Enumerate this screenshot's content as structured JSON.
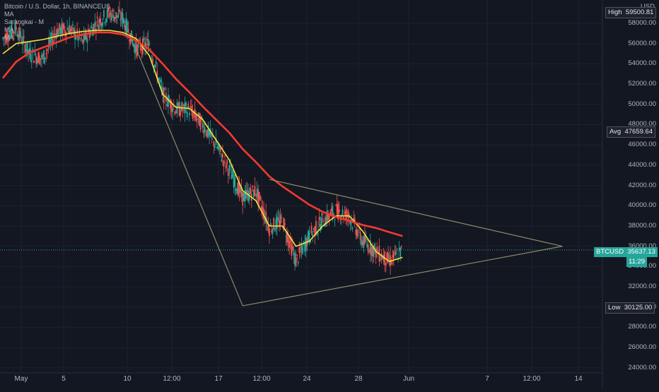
{
  "legend": {
    "symbol_line": "Bitcoin / U.S. Dollar, 1h, BINANCEUS",
    "ind1": "MA",
    "ind2": "Sarangkai - M",
    "ind3": "MA",
    "ind4": "MA"
  },
  "axis": {
    "currency": "USD",
    "ticks": [
      "58000.00",
      "56000.00",
      "54000.00",
      "52000.00",
      "50000.00",
      "48000.00",
      "46000.00",
      "44000.00",
      "42000.00",
      "40000.00",
      "38000.00",
      "36000.00",
      "34000.00",
      "32000.00",
      "30000.00",
      "28000.00",
      "26000.00",
      "24000.00"
    ]
  },
  "xaxis": {
    "labels": [
      "May",
      "5",
      "10",
      "12:00",
      "17",
      "12:00",
      "24",
      "28",
      "Jun",
      "7",
      "12:00",
      "14"
    ]
  },
  "tags": {
    "high_label": "High",
    "high_value": "59500.81",
    "avg_label": "Avg",
    "avg_value": "47659.64",
    "symbol_label": "BTCUSD",
    "price_value": "35637.13",
    "countdown": "11:29",
    "low_label": "Low",
    "low_value": "30125.00"
  },
  "colors": {
    "background": "#131722",
    "up_candle": "#26a69a",
    "down_candle": "#ef5350",
    "ma_fast": "#f5e13b",
    "ma_slow": "#f23a2f",
    "triangle": "#8c8a6a",
    "grid": "#1e222d"
  },
  "chart_data": {
    "type": "line",
    "title": "Bitcoin / U.S. Dollar, 1h, BINANCEUS",
    "ylim": [
      23500,
      60300
    ],
    "xlim": [
      "2021-05-01",
      "2021-06-15"
    ],
    "x_tick_labels": [
      "May",
      "5",
      "10",
      "12:00",
      "17",
      "12:00",
      "24",
      "28",
      "Jun",
      "7",
      "12:00",
      "14"
    ],
    "price_series": {
      "name": "BTCUSD",
      "x": [
        "2021-05-01",
        "2021-05-02",
        "2021-05-03",
        "2021-05-04",
        "2021-05-05",
        "2021-05-06",
        "2021-05-07",
        "2021-05-08",
        "2021-05-09",
        "2021-05-10",
        "2021-05-11",
        "2021-05-12",
        "2021-05-13",
        "2021-05-14",
        "2021-05-15",
        "2021-05-16",
        "2021-05-17",
        "2021-05-18",
        "2021-05-19",
        "2021-05-20",
        "2021-05-21",
        "2021-05-22",
        "2021-05-23",
        "2021-05-24",
        "2021-05-25",
        "2021-05-26",
        "2021-05-27",
        "2021-05-28",
        "2021-05-29",
        "2021-05-30",
        "2021-05-31"
      ],
      "close": [
        56500,
        57500,
        55000,
        54500,
        57200,
        57500,
        56200,
        58000,
        59000,
        58500,
        55500,
        56000,
        51000,
        49500,
        49500,
        48000,
        46000,
        43500,
        40800,
        41500,
        37800,
        38500,
        34500,
        37000,
        38500,
        39500,
        39000,
        36500,
        35500,
        34500,
        35637
      ]
    },
    "series": [
      {
        "name": "MA",
        "y": [
          55000,
          56000,
          56200,
          56400,
          56700,
          57000,
          57200,
          57300,
          57300,
          57100,
          56500,
          54800,
          51000,
          49700,
          49600,
          48500,
          46500,
          44500,
          41500,
          40500,
          38000,
          38000,
          36000,
          36500,
          38000,
          39000,
          39000,
          37500,
          35500,
          34500,
          34900
        ]
      },
      {
        "name": "MA",
        "y": [
          52600,
          54200,
          55100,
          55600,
          56100,
          56600,
          56900,
          57100,
          57100,
          56900,
          56300,
          55400,
          54000,
          52500,
          51200,
          49800,
          48500,
          47200,
          45600,
          44300,
          42900,
          41900,
          41000,
          40100,
          39400,
          38900,
          38500,
          38100,
          37800,
          37400,
          37000
        ]
      }
    ],
    "pattern": {
      "type": "triangle",
      "apex": [
        "2021-06-12",
        36000
      ],
      "upper_start": [
        "2021-05-21",
        42600
      ],
      "lower_start": [
        "2021-05-19",
        30125
      ]
    }
  }
}
